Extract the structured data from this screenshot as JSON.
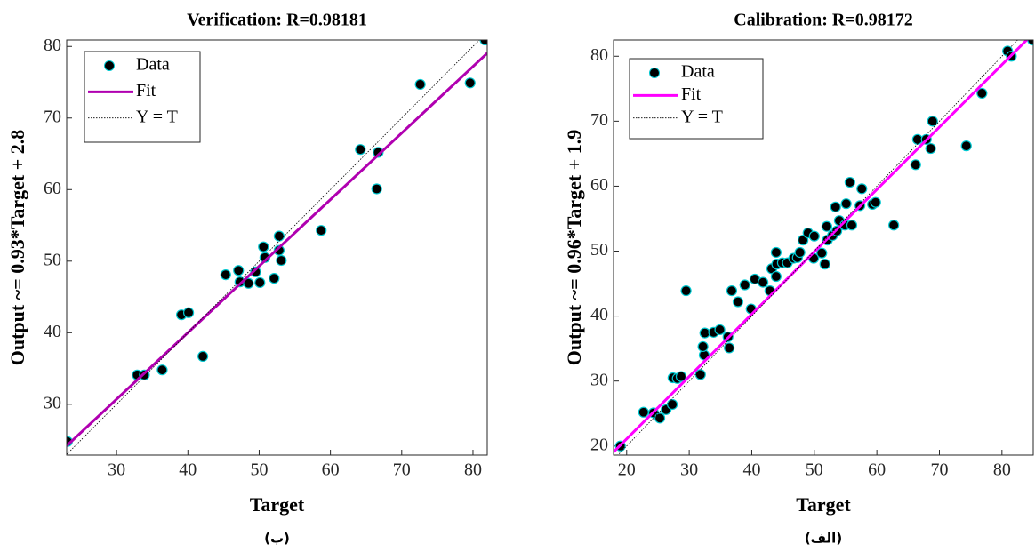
{
  "chart_data": [
    {
      "type": "scatter",
      "title": "Verification: R=0.98181",
      "xlabel": "Target",
      "ylabel": "Output ~= 0.93*Target + 2.8",
      "caption": "(ب)",
      "xlim": [
        23,
        82
      ],
      "ylim": [
        22.9,
        80.9
      ],
      "xticks": [
        30,
        40,
        50,
        60,
        70,
        80
      ],
      "yticks": [
        30,
        40,
        50,
        60,
        70,
        80
      ],
      "legend": "upper left",
      "series": [
        {
          "name": "Data",
          "mode": "markers",
          "color": "#000000",
          "edgecolor": "#00c8d0",
          "x": [
            23.1,
            32.9,
            33.9,
            36.4,
            39.1,
            40.1,
            42.1,
            45.3,
            47.1,
            47.3,
            48.5,
            49.5,
            50.1,
            50.6,
            50.8,
            52.1,
            52.8,
            52.8,
            53.1,
            58.7,
            64.2,
            66.5,
            66.7,
            72.6,
            79.6,
            81.7
          ],
          "values": [
            24.8,
            34.1,
            34.1,
            34.8,
            42.5,
            42.8,
            36.7,
            48.1,
            48.7,
            47.1,
            46.9,
            48.5,
            47.0,
            52.0,
            50.5,
            47.6,
            53.5,
            51.5,
            50.1,
            54.3,
            65.6,
            60.1,
            65.2,
            74.7,
            74.9,
            80.9
          ]
        },
        {
          "name": "Fit",
          "mode": "line",
          "color": "#b000b0",
          "x": [
            23,
            82
          ],
          "values": [
            24.2,
            79.06
          ]
        },
        {
          "name": "Y = T",
          "mode": "dotted",
          "color": "#000000",
          "x": [
            23,
            82
          ],
          "values": [
            23,
            82
          ]
        }
      ]
    },
    {
      "type": "scatter",
      "title": "Calibration: R=0.98172",
      "xlabel": "Target",
      "ylabel": "Output ~= 0.96*Target + 1.9",
      "caption": "(الف)",
      "xlim": [
        17.9,
        85
      ],
      "ylim": [
        18.6,
        82.5
      ],
      "xticks": [
        20,
        30,
        40,
        50,
        60,
        70,
        80
      ],
      "yticks": [
        20,
        30,
        40,
        50,
        60,
        70,
        80
      ],
      "legend": "upper left",
      "series": [
        {
          "name": "Data",
          "mode": "markers",
          "color": "#000000",
          "edgecolor": "#00c8d0",
          "x": [
            19,
            22.7,
            24.3,
            25.3,
            26.3,
            27.3,
            27.4,
            28.1,
            28.7,
            29.5,
            31.8,
            32.4,
            32.2,
            32.5,
            33.9,
            34.9,
            36.2,
            36.4,
            36.8,
            37.8,
            38.9,
            39.9,
            40.5,
            41.8,
            42.9,
            43.2,
            43.9,
            43.9,
            44.0,
            44.9,
            45.7,
            46.7,
            47.3,
            47.7,
            48.2,
            49.0,
            49.9,
            50.0,
            51.2,
            51.7,
            52.0,
            52.1,
            52.9,
            53.4,
            53.6,
            54.0,
            54.9,
            55.1,
            55.7,
            56.0,
            57.3,
            57.6,
            59.3,
            59.8,
            62.7,
            66.2,
            66.5,
            67.9,
            68.6,
            68.9,
            74.3,
            76.8,
            80.9,
            81.5,
            84.9
          ],
          "values": [
            20,
            25.2,
            25.1,
            24.3,
            25.6,
            26.4,
            30.5,
            30.4,
            30.7,
            43.9,
            31.0,
            34.0,
            35.3,
            37.4,
            37.5,
            37.9,
            36.8,
            35.1,
            43.9,
            42.2,
            44.8,
            41.1,
            45.7,
            45.2,
            43.9,
            47.3,
            49.8,
            46.1,
            48.0,
            48.2,
            48.2,
            48.9,
            49.0,
            49.8,
            51.7,
            52.8,
            48.9,
            52.3,
            49.7,
            48.0,
            53.8,
            51.7,
            52.4,
            56.8,
            53.1,
            54.7,
            54.0,
            57.3,
            60.6,
            54.0,
            57.0,
            59.6,
            57.2,
            57.5,
            54.0,
            63.3,
            67.2,
            67.2,
            65.8,
            70.0,
            66.2,
            74.3,
            80.8,
            80.0,
            82.5
          ]
        },
        {
          "name": "Fit",
          "mode": "line",
          "color": "#ff00ff",
          "x": [
            17.9,
            85
          ],
          "values": [
            19.08,
            83.5
          ]
        },
        {
          "name": "Y = T",
          "mode": "dotted",
          "color": "#000000",
          "x": [
            17.9,
            85
          ],
          "values": [
            17.9,
            85
          ]
        }
      ]
    }
  ]
}
